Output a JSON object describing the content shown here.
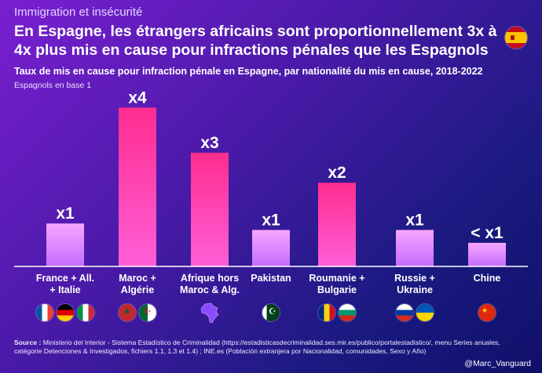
{
  "header": {
    "kicker": "Immigration et insécurité",
    "title_line1": "En Espagne, les étrangers africains sont proportionnellement 3x à",
    "title_line2": "4x plus mis en cause pour infractions pénales que les Espagnols"
  },
  "subtitle": "Taux de mis en cause pour infraction pénale en Espagne, par nationalité du mis en cause, 2018-2022",
  "unit_note": "Espagnols en base 1",
  "chart_data": {
    "type": "bar",
    "title": "Taux de mis en cause pour infraction pénale en Espagne, par nationalité du mis en cause, 2018-2022",
    "ylabel": "Espagnols en base 1",
    "categories": [
      [
        "France + All.",
        "+ Italie"
      ],
      [
        "Maroc +",
        "Algérie"
      ],
      [
        "Afrique hors",
        "Maroc & Alg."
      ],
      [
        "Pakistan"
      ],
      [
        "Roumanie +",
        "Bulgarie"
      ],
      [
        "Russie +",
        "Ukraine"
      ],
      [
        "Chine"
      ]
    ],
    "values": [
      1.0,
      3.7,
      2.65,
      0.85,
      1.95,
      0.85,
      0.55
    ],
    "data_labels": [
      "x1",
      "x4",
      "x3",
      "x1",
      "x2",
      "x1",
      "< x1"
    ],
    "ylim": [
      0,
      4.2
    ],
    "grid": false,
    "colors": {
      "bar_top": "#ff2d9a",
      "bar_bottom_hot": "#ff5fd0",
      "bar_light_top": "#f29bff",
      "bar_light_bottom": "#c26bff"
    }
  },
  "flags": [
    [
      "France",
      "Allemagne",
      "Italie"
    ],
    [
      "Maroc",
      "Algérie"
    ],
    [
      "Afrique"
    ],
    [
      "Pakistan"
    ],
    [
      "Roumanie",
      "Bulgarie"
    ],
    [
      "Russie",
      "Ukraine"
    ],
    [
      "Chine"
    ]
  ],
  "source": {
    "label": "Source :",
    "text": " Ministerio del Interior - Sistema Estadístico de Criminalidad (https://estadisticasdecriminalidad.ses.mir.es/publico/portalestadistico/, menu Series anuales, catégorie Detenciones & Investigados, fichiers 1.1, 1.3 et 1.4) ; INE.es (Población extranjera por Nacionalidad, comunidades, Sexo y Año)"
  },
  "handle": "@Marc_Vanguard",
  "colors": {
    "bg_start": "#7a1fd1",
    "bg_end": "#10106a"
  }
}
